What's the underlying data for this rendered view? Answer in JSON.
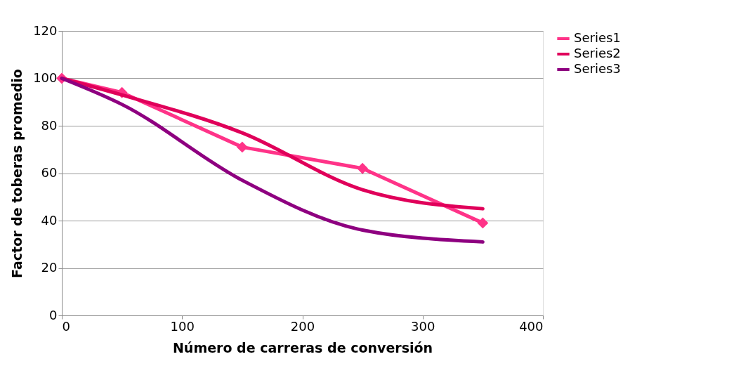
{
  "chart_data": {
    "type": "line",
    "xlabel": "Número de carreras de conversión",
    "ylabel": "Factor de toberas promedio",
    "x": [
      0,
      50,
      150,
      250,
      350
    ],
    "series": [
      {
        "name": "Series1",
        "color": "#ff3388",
        "values": [
          100,
          94,
          71,
          62,
          39
        ],
        "marker": "diamond"
      },
      {
        "name": "Series2",
        "color": "#e0005a",
        "values": [
          100,
          93,
          77,
          53,
          45
        ],
        "marker": "none"
      },
      {
        "name": "Series3",
        "color": "#8e0080",
        "values": [
          100,
          89,
          57,
          36,
          31
        ],
        "marker": "none"
      }
    ],
    "xlim": [
      0,
      400
    ],
    "xticks": [
      0,
      100,
      200,
      300,
      400
    ],
    "ylim": [
      0,
      120
    ],
    "yticks": [
      0,
      20,
      40,
      60,
      80,
      100,
      120
    ],
    "grid": "y",
    "legend": "right"
  }
}
